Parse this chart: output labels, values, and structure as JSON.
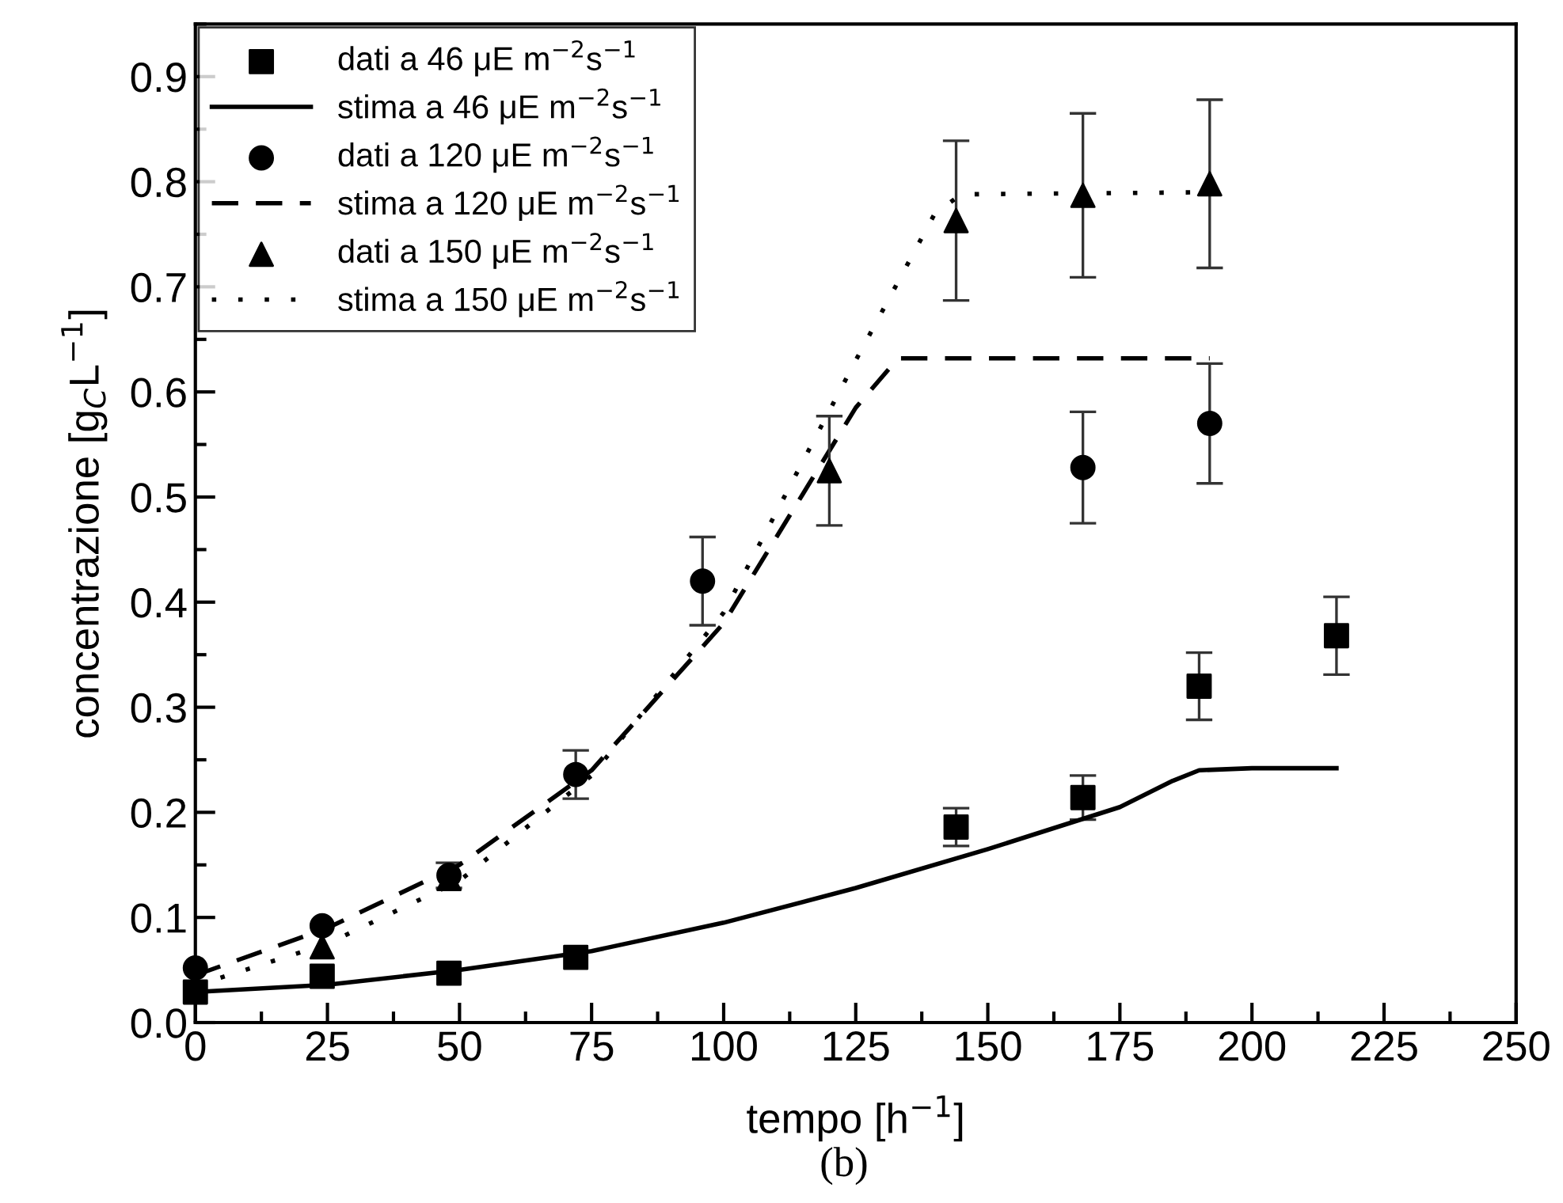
{
  "chart_data": {
    "type": "scatter",
    "xlabel": "tempo [h$^{−1}$]",
    "ylabel": "concentrazione [g$_{C}$L$^{−1}$]",
    "annotations": [
      "(b)"
    ],
    "xlim": [
      0,
      250
    ],
    "ylim": [
      0,
      0.95
    ],
    "xticks": [
      0,
      25,
      50,
      75,
      100,
      125,
      150,
      175,
      200,
      225,
      250
    ],
    "yticks": [
      {
        "value": 0,
        "label": "0.0"
      },
      {
        "value": 0.1,
        "label": "0.1"
      },
      {
        "value": 0.2,
        "label": "0.2"
      },
      {
        "value": 0.3,
        "label": "0.3"
      },
      {
        "value": 0.4,
        "label": "0.4"
      },
      {
        "value": 0.5,
        "label": "0.5"
      },
      {
        "value": 0.6,
        "label": "0.6"
      },
      {
        "value": 0.7,
        "label": "0.7"
      },
      {
        "value": 0.8,
        "label": "0.8"
      },
      {
        "value": 0.9,
        "label": "0.9"
      }
    ],
    "grid": false,
    "legend": "top left",
    "series": [
      {
        "name": "dati a 46 μE m$^{−2}$s$^{−1}$",
        "marker": "square",
        "color": "#000000",
        "x": [
          0,
          24,
          48,
          72,
          144,
          168,
          190,
          216
        ],
        "values": [
          0.029,
          0.044,
          0.047,
          0.062,
          0.186,
          0.214,
          0.32,
          0.368
        ],
        "errors": [
          null,
          null,
          null,
          null,
          0.018,
          0.021,
          0.032,
          0.037
        ]
      },
      {
        "name": "stima a 46 μE m$^{−2}$s$^{−1}$",
        "type": "line",
        "line_style": "solid",
        "color": "#000000",
        "x": [
          0,
          25,
          50,
          75,
          100,
          125,
          150,
          175,
          185,
          190,
          200,
          216
        ],
        "values": [
          0.029,
          0.036,
          0.05,
          0.068,
          0.095,
          0.128,
          0.165,
          0.205,
          0.23,
          0.24,
          0.242,
          0.242
        ]
      },
      {
        "name": "dati a 120 μE m$^{−2}$s$^{−1}$",
        "marker": "circle",
        "color": "#000000",
        "x": [
          0,
          24,
          48,
          72,
          96,
          168,
          192
        ],
        "values": [
          0.052,
          0.092,
          0.14,
          0.236,
          0.42,
          0.528,
          0.57
        ],
        "errors": [
          null,
          null,
          0.012,
          0.023,
          0.042,
          0.053,
          0.057
        ]
      },
      {
        "name": "stima a 120 μE m$^{−2}$s$^{−1}$",
        "type": "line",
        "line_style": "dashed",
        "color": "#000000",
        "x": [
          0,
          25,
          50,
          75,
          100,
          125,
          133,
          192
        ],
        "values": [
          0.045,
          0.09,
          0.15,
          0.24,
          0.38,
          0.585,
          0.632,
          0.632
        ]
      },
      {
        "name": "dati a 150 μE m$^{−2}$s$^{−1}$",
        "marker": "triangle",
        "color": "#000000",
        "x": [
          24,
          48,
          120,
          144,
          168,
          192
        ],
        "values": [
          0.072,
          0.137,
          0.525,
          0.763,
          0.787,
          0.798
        ],
        "errors": [
          null,
          null,
          0.052,
          0.076,
          0.078,
          0.08
        ]
      },
      {
        "name": "stima a 150 μE m$^{−2}$s$^{−1}$",
        "type": "line",
        "line_style": "dotted",
        "color": "#000000",
        "x": [
          0,
          25,
          50,
          75,
          100,
          125,
          140,
          145,
          192
        ],
        "values": [
          0.035,
          0.075,
          0.135,
          0.235,
          0.39,
          0.63,
          0.77,
          0.788,
          0.79
        ]
      }
    ]
  }
}
